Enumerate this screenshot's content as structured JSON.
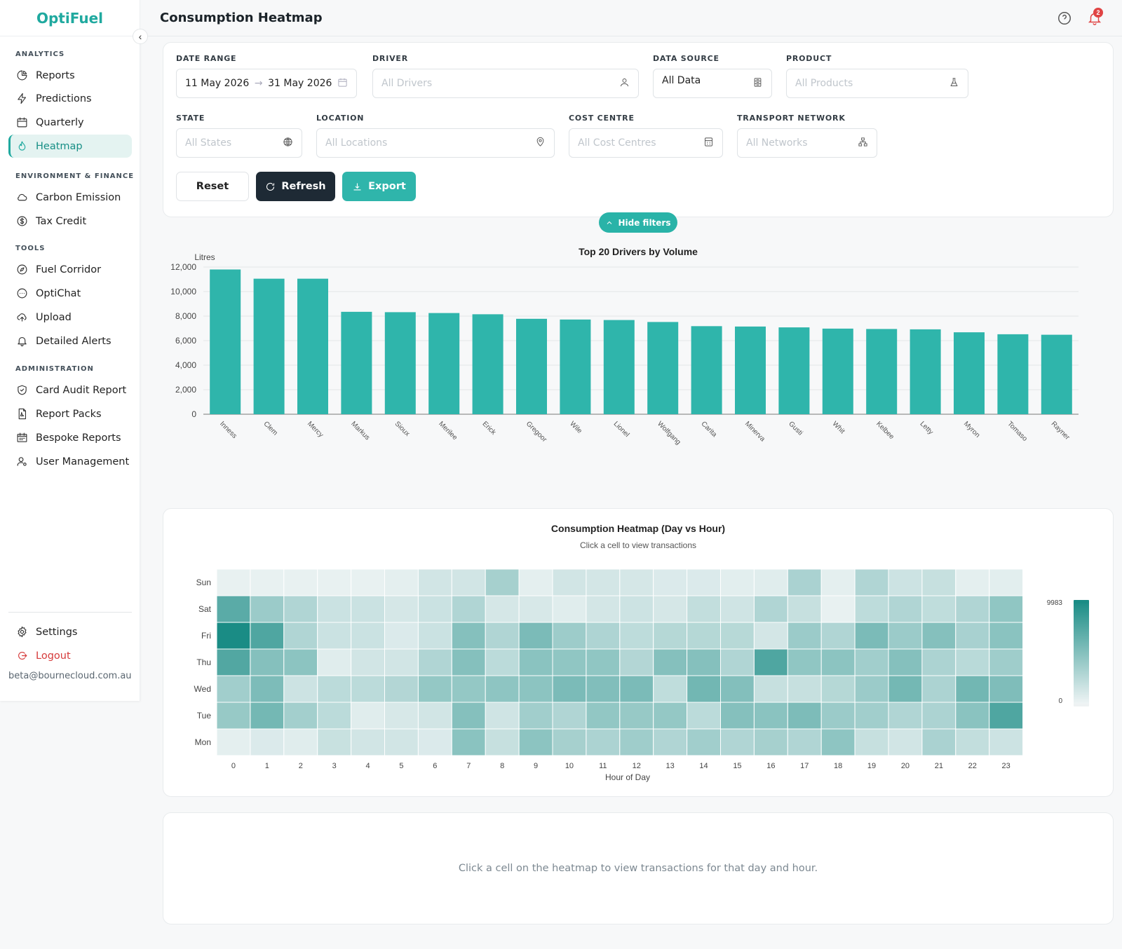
{
  "app": {
    "name": "OptiFuel"
  },
  "page": {
    "title": "Consumption Heatmap"
  },
  "notifications": {
    "count": "2"
  },
  "sidebar": {
    "sections": {
      "analytics": "ANALYTICS",
      "env": "ENVIRONMENT & FINANCE",
      "tools": "TOOLS",
      "admin": "ADMINISTRATION"
    },
    "items": {
      "reports": "Reports",
      "predictions": "Predictions",
      "quarterly": "Quarterly",
      "heatmap": "Heatmap",
      "carbon": "Carbon Emission",
      "tax": "Tax Credit",
      "corridor": "Fuel Corridor",
      "optichat": "OptiChat",
      "upload": "Upload",
      "alerts": "Detailed Alerts",
      "card_audit": "Card Audit Report",
      "report_packs": "Report Packs",
      "bespoke": "Bespoke Reports",
      "users": "User Management"
    },
    "settings": "Settings",
    "logout": "Logout",
    "email": "beta@bournecloud.com.au"
  },
  "filters": {
    "date_range": {
      "label": "DATE RANGE",
      "start": "11 May 2026",
      "end": "31 May 2026",
      "arrow": "→"
    },
    "driver": {
      "label": "DRIVER",
      "placeholder": "All Drivers"
    },
    "data_source": {
      "label": "DATA SOURCE",
      "value": "All Data"
    },
    "product": {
      "label": "PRODUCT",
      "placeholder": "All Products"
    },
    "state": {
      "label": "STATE",
      "placeholder": "All States"
    },
    "location": {
      "label": "LOCATION",
      "placeholder": "All Locations"
    },
    "cost_centre": {
      "label": "COST CENTRE",
      "placeholder": "All Cost Centres"
    },
    "transport": {
      "label": "TRANSPORT NETWORK",
      "placeholder": "All Networks"
    },
    "buttons": {
      "reset": "Reset",
      "refresh": "Refresh",
      "export": "Export"
    },
    "hide": "Hide filters"
  },
  "colors": {
    "accent": "#2fb5ab",
    "dark_button": "#1e2a35",
    "heat_low": "#f1f5f6",
    "heat_high": "#1a8c85"
  },
  "chart_data": [
    {
      "type": "bar",
      "title": "Top 20 Drivers by Volume",
      "ylabel": "Litres",
      "xlabel": "",
      "ylim": [
        0,
        12000
      ],
      "yticks": [
        "0",
        "2,000",
        "4,000",
        "6,000",
        "8,000",
        "10,000",
        "12,000"
      ],
      "categories": [
        "Inness",
        "Clem",
        "Mercy",
        "Markus",
        "Sioux",
        "Merilee",
        "Erick",
        "Gregoor",
        "Wile",
        "Lionel",
        "Wolfgang",
        "Carita",
        "Minerva",
        "Gusti",
        "Whit",
        "Kelbee",
        "Letty",
        "Myron",
        "Tomaso",
        "Rayner"
      ],
      "values": [
        11800,
        11050,
        11050,
        8350,
        8320,
        8250,
        8150,
        7780,
        7720,
        7680,
        7520,
        7180,
        7150,
        7080,
        6980,
        6950,
        6920,
        6680,
        6520,
        6480
      ],
      "grid": true
    },
    {
      "type": "heatmap",
      "title": "Consumption Heatmap (Day vs Hour)",
      "subtitle": "Click a cell to view transactions",
      "xlabel": "Hour of Day",
      "x": [
        "0",
        "1",
        "2",
        "3",
        "4",
        "5",
        "6",
        "7",
        "8",
        "9",
        "10",
        "11",
        "12",
        "13",
        "14",
        "15",
        "16",
        "17",
        "18",
        "19",
        "20",
        "21",
        "22",
        "23"
      ],
      "y": [
        "Sun",
        "Sat",
        "Fri",
        "Thu",
        "Wed",
        "Tue",
        "Mon"
      ],
      "scale": {
        "min": "0",
        "max": "9983"
      },
      "values": [
        [
          400,
          400,
          400,
          400,
          400,
          600,
          1500,
          1500,
          3500,
          600,
          1500,
          1400,
          1300,
          1000,
          1000,
          700,
          800,
          3300,
          600,
          3000,
          1700,
          2000,
          600,
          700
        ],
        [
          7000,
          4000,
          3000,
          1800,
          1800,
          1300,
          1800,
          3000,
          1300,
          1200,
          800,
          1400,
          1700,
          1300,
          2200,
          1600,
          3000,
          2000,
          400,
          2400,
          3000,
          2300,
          3000,
          4500
        ],
        [
          9983,
          7500,
          3000,
          1800,
          1800,
          1000,
          1800,
          5000,
          3000,
          5500,
          3900,
          3100,
          2400,
          2800,
          2800,
          2700,
          1400,
          4000,
          3000,
          5500,
          4000,
          5000,
          3400,
          4800
        ],
        [
          7400,
          5000,
          4700,
          800,
          1500,
          1500,
          3000,
          5000,
          2500,
          4800,
          4500,
          4500,
          2900,
          5000,
          5000,
          3000,
          7500,
          4500,
          4700,
          3700,
          5000,
          3200,
          2600,
          3800
        ],
        [
          3700,
          5400,
          1700,
          2500,
          2500,
          2900,
          4300,
          4300,
          4600,
          4700,
          5500,
          5200,
          5500,
          2300,
          5900,
          5100,
          2000,
          2000,
          2800,
          4000,
          5800,
          3200,
          5900,
          5300
        ],
        [
          4200,
          5800,
          3600,
          2500,
          800,
          1200,
          1500,
          5000,
          1600,
          3700,
          3000,
          4400,
          4200,
          4300,
          2500,
          5000,
          4800,
          5400,
          4000,
          3700,
          3000,
          3200,
          4800,
          7500
        ],
        [
          600,
          1000,
          800,
          1900,
          1500,
          1500,
          1000,
          4800,
          2000,
          4700,
          3500,
          3200,
          3800,
          3000,
          3700,
          3000,
          3500,
          3000,
          4600,
          2000,
          1500,
          3300,
          2200,
          1700
        ]
      ]
    }
  ],
  "details": {
    "empty": "Click a cell on the heatmap to view transactions for that day and hour."
  }
}
